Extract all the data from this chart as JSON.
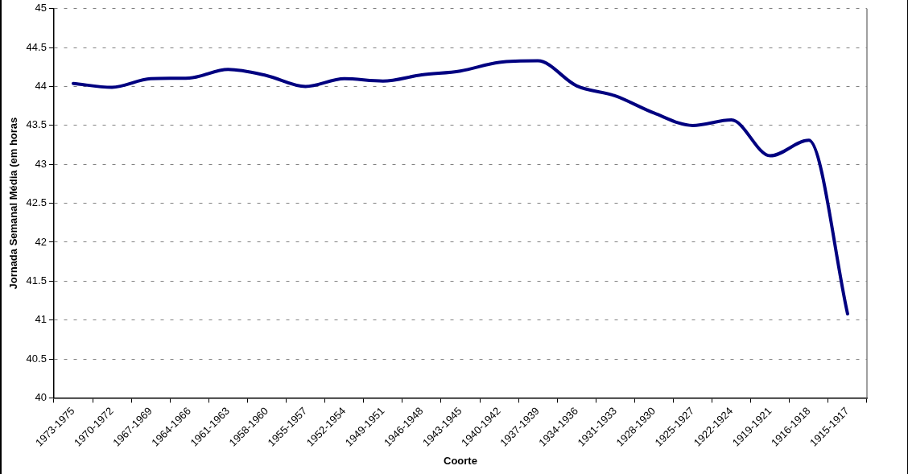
{
  "chart_data": {
    "type": "line",
    "xlabel": "Coorte",
    "ylabel": "Jornada Semanal Média (em horas",
    "categories": [
      "1973-1975",
      "1970-1972",
      "1967-1969",
      "1964-1966",
      "1961-1963",
      "1958-1960",
      "1955-1957",
      "1952-1954",
      "1949-1951",
      "1946-1948",
      "1943-1945",
      "1940-1942",
      "1937-1939",
      "1934-1936",
      "1931-1933",
      "1928-1930",
      "1925-1927",
      "1922-1924",
      "1919-1921",
      "1916-1918",
      "1915-1917"
    ],
    "series": [
      {
        "color": "#000080",
        "values": [
          44.04,
          43.99,
          44.1,
          44.11,
          44.22,
          44.14,
          44.0,
          44.1,
          44.07,
          44.15,
          44.2,
          44.31,
          44.33,
          44.01,
          43.88,
          43.66,
          43.5,
          43.57,
          43.11,
          43.31,
          41.08
        ]
      }
    ],
    "ylim": [
      40,
      45
    ],
    "yticks": [
      40,
      40.5,
      41,
      41.5,
      42,
      42.5,
      43,
      43.5,
      44,
      44.5,
      45
    ],
    "grid": "y",
    "legend": false,
    "marker": "none",
    "line_style": "solid"
  }
}
